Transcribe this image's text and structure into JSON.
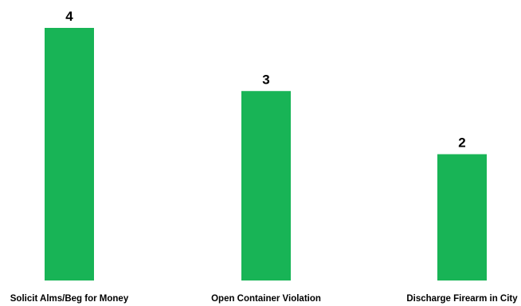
{
  "chart_data": {
    "type": "bar",
    "categories": [
      "Solicit Alms/Beg for Money",
      "Open Container Violation",
      "Discharge Firearm in City"
    ],
    "values": [
      4,
      3,
      2
    ],
    "data_labels": [
      "4",
      "3",
      "2"
    ],
    "title": "",
    "xlabel": "",
    "ylabel": "",
    "ylim": [
      0,
      4
    ],
    "grid": false,
    "legend": "none",
    "bar_color": "#18b456"
  }
}
